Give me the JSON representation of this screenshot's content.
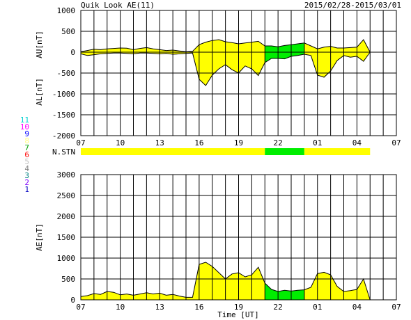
{
  "header": {
    "title": "Quik Look AE(11)",
    "date_range": "2015/02/28-2015/03/01"
  },
  "station_legend": {
    "numbers": [
      "11",
      "10",
      "9",
      "8",
      "7",
      "6",
      "5",
      "4",
      "3",
      "2",
      "1"
    ],
    "colors": [
      "#00d0d0",
      "#ff00ff",
      "#0000ff",
      "#ffff80",
      "#00a000",
      "#ff0000",
      "#c0c0c0",
      "#808080",
      "#008080",
      "#8000ff",
      "#0000c0"
    ]
  },
  "chart_data": [
    {
      "type": "area",
      "panel": "AU/AL",
      "ylabel_top": "AU[nT]",
      "ylabel_bottom": "AL[nT]",
      "ylim": [
        -2000,
        1000
      ],
      "yticks": [
        1000,
        500,
        0,
        -500,
        -1000,
        -1500,
        -2000
      ],
      "xticks": [
        "07",
        "10",
        "13",
        "16",
        "19",
        "22",
        "01",
        "04",
        "07"
      ],
      "x_unit": "hour UT (07 day1 to 07 day2)",
      "grid": true,
      "fill_colors": {
        "normal": "#ffff00",
        "highlight": "#00ee00"
      },
      "highlight_range": [
        "21:00",
        "24:00"
      ],
      "series": [
        {
          "name": "AU",
          "x": [
            7,
            7.5,
            8,
            8.5,
            9,
            9.5,
            10,
            10.5,
            11,
            11.5,
            12,
            12.5,
            13,
            13.5,
            14,
            14.5,
            15,
            15.5,
            16,
            16.5,
            17,
            17.5,
            18,
            18.5,
            19,
            19.5,
            20,
            20.5,
            21,
            21.5,
            22,
            22.5,
            23,
            23.5,
            24,
            24.5,
            25,
            25.5,
            26,
            26.5,
            27,
            27.5,
            28,
            28.5,
            29
          ],
          "values": [
            10,
            40,
            70,
            60,
            80,
            90,
            100,
            95,
            60,
            90,
            110,
            80,
            60,
            40,
            50,
            30,
            10,
            20,
            180,
            240,
            280,
            300,
            250,
            230,
            200,
            220,
            240,
            260,
            150,
            150,
            130,
            160,
            180,
            200,
            220,
            150,
            80,
            120,
            140,
            100,
            100,
            110,
            120,
            300,
            0
          ]
        },
        {
          "name": "AL",
          "x": [
            7,
            7.5,
            8,
            8.5,
            9,
            9.5,
            10,
            10.5,
            11,
            11.5,
            12,
            12.5,
            13,
            13.5,
            14,
            14.5,
            15,
            15.5,
            16,
            16.5,
            17,
            17.5,
            18,
            18.5,
            19,
            19.5,
            20,
            20.5,
            21,
            21.5,
            22,
            22.5,
            23,
            23.5,
            24,
            24.5,
            25,
            25.5,
            26,
            26.5,
            27,
            27.5,
            28,
            28.5,
            29
          ],
          "values": [
            -40,
            -80,
            -60,
            -40,
            -30,
            -20,
            -20,
            -30,
            -40,
            -20,
            -20,
            -30,
            -40,
            -30,
            -50,
            -40,
            -30,
            -20,
            -650,
            -800,
            -550,
            -400,
            -300,
            -420,
            -500,
            -330,
            -400,
            -560,
            -250,
            -150,
            -150,
            -160,
            -100,
            -80,
            -50,
            -80,
            -550,
            -600,
            -450,
            -200,
            -80,
            -120,
            -100,
            -220,
            0
          ]
        }
      ]
    },
    {
      "type": "bar",
      "panel": "N.STN",
      "ylabel": "N.STN",
      "segments": [
        {
          "from": 7,
          "to": 21,
          "color": "#ffff00"
        },
        {
          "from": 21,
          "to": 24,
          "color": "#00ee00"
        },
        {
          "from": 24,
          "to": 29,
          "color": "#ffff00"
        }
      ]
    },
    {
      "type": "area",
      "panel": "AE",
      "ylabel": "AE[nT]",
      "xlabel": "Time [UT]",
      "ylim": [
        0,
        3000
      ],
      "yticks": [
        3000,
        2500,
        2000,
        1500,
        1000,
        500,
        0
      ],
      "xticks": [
        "07",
        "10",
        "13",
        "16",
        "19",
        "22",
        "01",
        "04",
        "07"
      ],
      "grid": true,
      "fill_colors": {
        "normal": "#ffff00",
        "highlight": "#00ee00"
      },
      "highlight_range": [
        "21:00",
        "24:00"
      ],
      "series": [
        {
          "name": "AE",
          "x": [
            7,
            7.5,
            8,
            8.5,
            9,
            9.5,
            10,
            10.5,
            11,
            11.5,
            12,
            12.5,
            13,
            13.5,
            14,
            14.5,
            15,
            15.5,
            16,
            16.5,
            17,
            17.5,
            18,
            18.5,
            19,
            19.5,
            20,
            20.5,
            21,
            21.5,
            22,
            22.5,
            23,
            23.5,
            24,
            24.5,
            25,
            25.5,
            26,
            26.5,
            27,
            27.5,
            28,
            28.5,
            29
          ],
          "values": [
            80,
            100,
            150,
            130,
            200,
            180,
            120,
            140,
            110,
            140,
            170,
            140,
            160,
            110,
            130,
            90,
            60,
            60,
            850,
            900,
            800,
            650,
            500,
            620,
            650,
            550,
            600,
            780,
            400,
            250,
            200,
            230,
            210,
            230,
            240,
            300,
            630,
            660,
            600,
            320,
            200,
            220,
            250,
            500,
            0
          ]
        }
      ]
    }
  ]
}
